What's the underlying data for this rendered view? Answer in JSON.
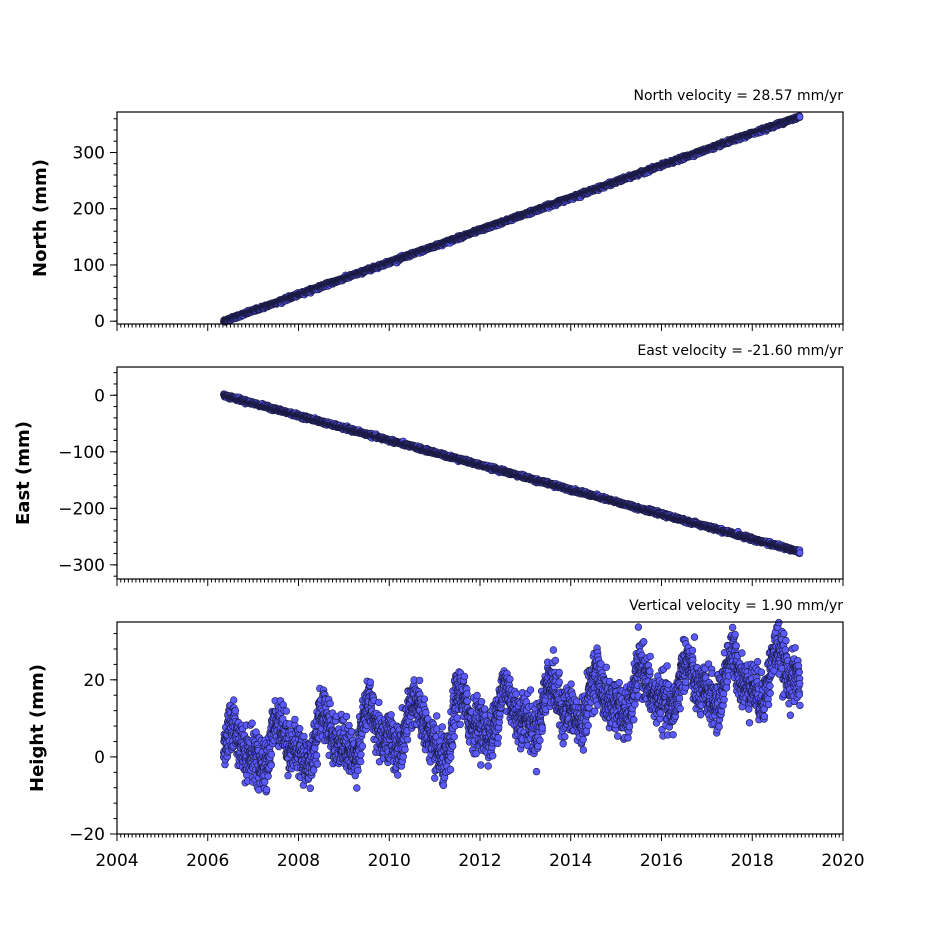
{
  "chart_data": [
    {
      "type": "scatter",
      "annotation": "North velocity = 28.57 mm/yr",
      "ylabel": "North (mm)",
      "velocity_mm_per_yr": 28.57,
      "xlim": [
        2004,
        2020
      ],
      "ylim": [
        -5,
        372
      ],
      "yticks": [
        0,
        100,
        200,
        300
      ],
      "ytick_labels": [
        "0",
        "100",
        "200",
        "300"
      ],
      "x_range": [
        2006.35,
        2019.05
      ],
      "y_range": [
        0,
        364
      ],
      "noise_mm": 1.5,
      "show_xtick_labels": false
    },
    {
      "type": "scatter",
      "annotation": "East velocity = -21.60 mm/yr",
      "ylabel": "East (mm)",
      "velocity_mm_per_yr": -21.6,
      "xlim": [
        2004,
        2020
      ],
      "ylim": [
        -325,
        50
      ],
      "yticks": [
        0,
        -100,
        -200,
        -300
      ],
      "ytick_labels": [
        "0",
        "−100",
        "−200",
        "−300"
      ],
      "x_range": [
        2006.35,
        2019.05
      ],
      "y_range": [
        0,
        -277
      ],
      "noise_mm": 1.5,
      "show_xtick_labels": false
    },
    {
      "type": "scatter",
      "annotation": "Vertical velocity = 1.90 mm/yr",
      "ylabel": "Height (mm)",
      "velocity_mm_per_yr": 1.9,
      "xlim": [
        2004,
        2020
      ],
      "ylim": [
        -20,
        35
      ],
      "yticks": [
        -20,
        0,
        20
      ],
      "ytick_labels": [
        "−20",
        "0",
        "20"
      ],
      "x_range": [
        2006.35,
        2019.05
      ],
      "y_range": [
        1,
        22
      ],
      "noise_mm": 6,
      "xticks": [
        2004,
        2006,
        2008,
        2010,
        2012,
        2014,
        2016,
        2018,
        2020
      ],
      "xtick_labels": [
        "2004",
        "2006",
        "2008",
        "2010",
        "2012",
        "2014",
        "2016",
        "2018",
        "2020"
      ],
      "show_xtick_labels": true
    }
  ],
  "colors": {
    "marker_fill": "#5a5aff",
    "marker_edge": "#1a1a40"
  }
}
